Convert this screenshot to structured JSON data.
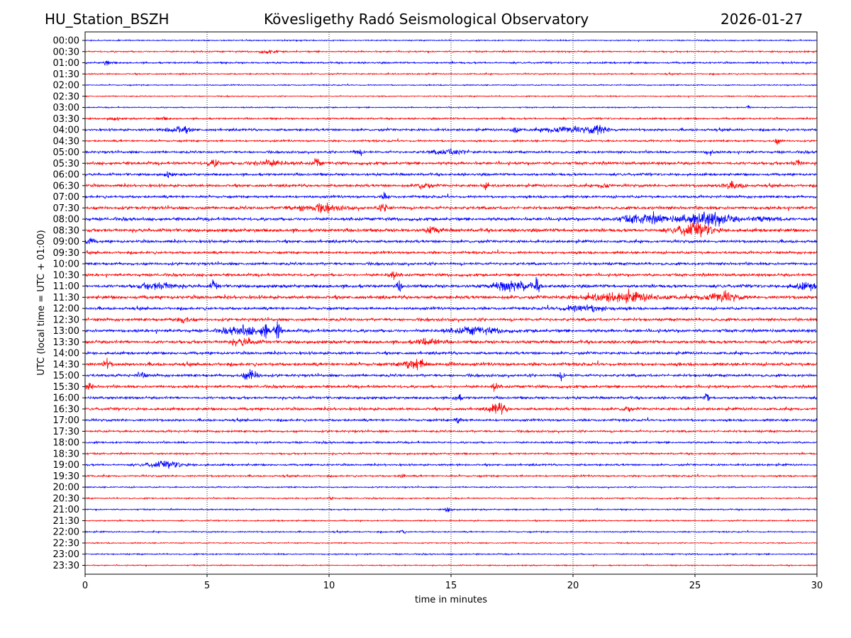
{
  "header": {
    "station": "HU_Station_BSZH",
    "observatory": "Kövesligethy Radó Seismological Observatory",
    "date": "2026-01-27"
  },
  "chart_data": {
    "type": "line",
    "title": "Kövesligethy Radó Seismological Observatory",
    "xlabel": "time in minutes",
    "ylabel": "UTC (local time = UTC + 01:00)",
    "xlim": [
      0,
      30
    ],
    "xticks": [
      0,
      5,
      10,
      15,
      20,
      25,
      30
    ],
    "grid": "vertical dotted at x ticks",
    "colors": [
      "#0000ff",
      "#ff0000"
    ],
    "rows": [
      "00:00",
      "00:30",
      "01:00",
      "01:30",
      "02:00",
      "02:30",
      "03:00",
      "03:30",
      "04:00",
      "04:30",
      "05:00",
      "05:30",
      "06:00",
      "06:30",
      "07:00",
      "07:30",
      "08:00",
      "08:30",
      "09:00",
      "09:30",
      "10:00",
      "10:30",
      "11:00",
      "11:30",
      "12:00",
      "12:30",
      "13:00",
      "13:30",
      "14:00",
      "14:30",
      "15:00",
      "15:30",
      "16:00",
      "16:30",
      "17:00",
      "17:30",
      "18:00",
      "18:30",
      "19:00",
      "19:30",
      "20:00",
      "20:30",
      "21:00",
      "21:30",
      "22:00",
      "22:30",
      "23:00",
      "23:30"
    ],
    "noise_level": [
      0.6,
      0.8,
      0.9,
      0.7,
      0.6,
      0.6,
      0.6,
      0.9,
      1.2,
      1.0,
      1.2,
      1.5,
      1.3,
      1.4,
      1.3,
      1.6,
      1.6,
      1.7,
      1.4,
      1.3,
      1.4,
      1.4,
      1.6,
      1.7,
      1.4,
      1.5,
      1.6,
      1.6,
      1.4,
      1.6,
      1.4,
      1.4,
      1.3,
      1.4,
      1.2,
      1.1,
      1.0,
      0.9,
      1.0,
      0.9,
      0.7,
      0.7,
      0.7,
      0.7,
      0.7,
      0.6,
      0.7,
      0.6
    ],
    "events": [
      [
        1,
        7.5,
        1.5,
        0.6
      ],
      [
        2,
        0.9,
        2,
        0.3
      ],
      [
        6,
        27.2,
        1.5,
        0.2
      ],
      [
        7,
        1.2,
        1.5,
        0.4
      ],
      [
        7,
        3.2,
        1,
        0.5
      ],
      [
        8,
        3.8,
        3,
        1
      ],
      [
        8,
        17.6,
        4,
        0.3
      ],
      [
        8,
        19.5,
        3,
        1.5
      ],
      [
        8,
        21,
        4,
        1
      ],
      [
        9,
        28.4,
        2.5,
        0.3
      ],
      [
        10,
        11.2,
        2.5,
        0.4
      ],
      [
        10,
        15,
        2.5,
        1.5
      ],
      [
        10,
        25.6,
        2.5,
        0.3
      ],
      [
        11,
        5.3,
        3,
        0.6
      ],
      [
        11,
        7.5,
        2.5,
        1.5
      ],
      [
        11,
        9.5,
        4,
        0.3
      ],
      [
        11,
        29.2,
        2.5,
        0.4
      ],
      [
        12,
        3.4,
        2.5,
        0.3
      ],
      [
        13,
        13.9,
        3,
        0.5
      ],
      [
        13,
        16.4,
        4,
        0.2
      ],
      [
        13,
        21.3,
        3,
        0.4
      ],
      [
        13,
        26.5,
        2.5,
        1
      ],
      [
        14,
        12.3,
        2.5,
        0.3
      ],
      [
        15,
        9.5,
        3,
        2
      ],
      [
        15,
        12.3,
        3,
        0.5
      ],
      [
        16,
        23,
        4,
        2
      ],
      [
        16,
        25.5,
        6,
        2
      ],
      [
        16,
        28,
        3,
        1
      ],
      [
        17,
        14.3,
        3,
        0.6
      ],
      [
        17,
        25,
        6,
        1.5
      ],
      [
        18,
        0.2,
        3,
        0.3
      ],
      [
        21,
        12.6,
        3,
        0.4
      ],
      [
        22,
        3,
        3,
        1.5
      ],
      [
        22,
        5.3,
        4,
        0.3
      ],
      [
        22,
        12.9,
        5,
        0.2
      ],
      [
        22,
        17.5,
        5,
        1.5
      ],
      [
        22,
        18.5,
        6,
        0.2
      ],
      [
        22,
        29.5,
        3,
        1
      ],
      [
        23,
        22,
        4,
        3
      ],
      [
        23,
        26,
        4,
        1.5
      ],
      [
        24,
        20.5,
        3,
        2
      ],
      [
        25,
        4,
        3,
        0.6
      ],
      [
        26,
        6.5,
        4,
        1.5
      ],
      [
        26,
        7.4,
        8,
        0.3
      ],
      [
        26,
        7.9,
        7,
        0.3
      ],
      [
        26,
        16,
        3,
        2
      ],
      [
        27,
        6.5,
        3,
        1
      ],
      [
        27,
        14,
        3,
        1
      ],
      [
        29,
        0.9,
        4,
        0.3
      ],
      [
        29,
        13.5,
        5,
        1
      ],
      [
        29,
        15,
        5,
        0.2
      ],
      [
        30,
        2.3,
        4,
        0.3
      ],
      [
        30,
        6.8,
        5,
        0.6
      ],
      [
        30,
        19.5,
        3,
        0.3
      ],
      [
        31,
        0.2,
        3,
        0.3
      ],
      [
        31,
        16.8,
        3,
        0.3
      ],
      [
        32,
        15.3,
        3,
        0.3
      ],
      [
        32,
        25.5,
        4,
        0.2
      ],
      [
        33,
        16.9,
        6,
        0.6
      ],
      [
        33,
        22.2,
        3,
        0.3
      ],
      [
        34,
        15.3,
        3,
        0.3
      ],
      [
        38,
        3.3,
        3,
        1.5
      ],
      [
        39,
        13,
        2.5,
        0.2
      ],
      [
        41,
        10.1,
        2,
        0.2
      ],
      [
        42,
        14.9,
        2.5,
        0.3
      ],
      [
        44,
        13,
        2,
        0.2
      ]
    ]
  }
}
